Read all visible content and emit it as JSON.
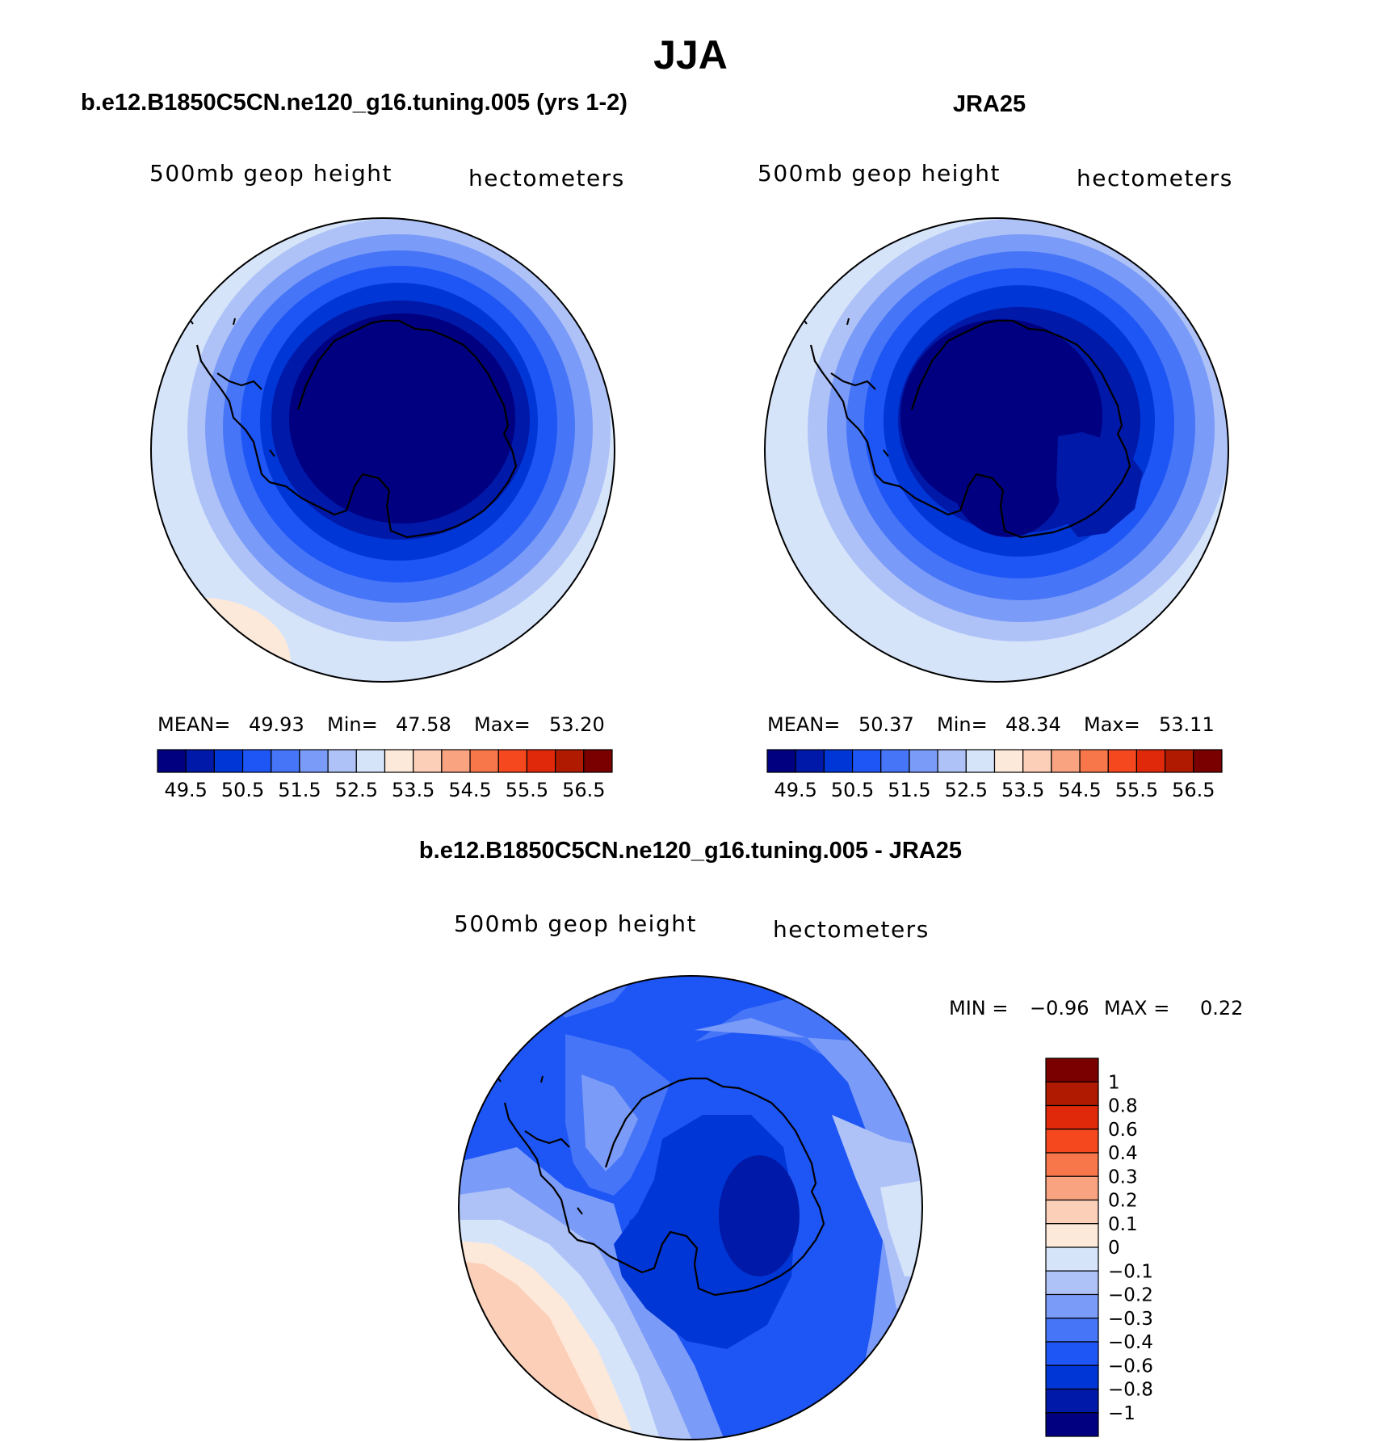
{
  "figure": {
    "title": "JJA",
    "bottom_title": "b.e12.B1850C5CN.ne120_g16.tuning.005 - JRA25"
  },
  "panels": {
    "model": {
      "title": "b.e12.B1850C5CN.ne120_g16.tuning.005 (yrs 1-2)",
      "variable": "500mb geop height",
      "units": "hectometers",
      "stats": {
        "mean_label": "MEAN=",
        "mean": "49.93",
        "min_label": "Min=",
        "min": "47.58",
        "max_label": "Max=",
        "max": "53.20"
      },
      "colorbar_labels": [
        "49.5",
        "50.5",
        "51.5",
        "52.5",
        "53.5",
        "54.5",
        "55.5",
        "56.5"
      ]
    },
    "obs": {
      "title": "JRA25",
      "variable": "500mb geop height",
      "units": "hectometers",
      "stats": {
        "mean_label": "MEAN=",
        "mean": "50.37",
        "min_label": "Min=",
        "min": "48.34",
        "max_label": "Max=",
        "max": "53.11"
      },
      "colorbar_labels": [
        "49.5",
        "50.5",
        "51.5",
        "52.5",
        "53.5",
        "54.5",
        "55.5",
        "56.5"
      ]
    },
    "diff": {
      "variable": "500mb geop height",
      "units": "hectometers",
      "stats": {
        "min_label": "MIN =",
        "min": "−0.96",
        "max_label": "MAX =",
        "max": "0.22"
      },
      "colorbar_labels": [
        "1",
        "0.8",
        "0.6",
        "0.4",
        "0.3",
        "0.2",
        "0.1",
        "0",
        "−0.1",
        "−0.2",
        "−0.3",
        "−0.4",
        "−0.6",
        "−0.8",
        "−1"
      ]
    }
  },
  "chart_data": [
    {
      "type": "heatmap",
      "title": "b.e12.B1850C5CN.ne120_g16.tuning.005 (yrs 1-2)",
      "projection": "south polar stereographic",
      "variable": "500mb geop height",
      "units": "hectometers",
      "stats": {
        "mean": 49.93,
        "min": 47.58,
        "max": 53.2
      },
      "levels": [
        49.5,
        50,
        50.5,
        51,
        51.5,
        52,
        52.5,
        53,
        53.5,
        54,
        54.5,
        55,
        55.5,
        56,
        56.5
      ],
      "colors": [
        "#000080",
        "#0019a8",
        "#0036d6",
        "#1e55f5",
        "#4675f7",
        "#7a9bf8",
        "#aec2f7",
        "#d6e4fa",
        "#fde9da",
        "#fbcfb8",
        "#f9a380",
        "#f7774b",
        "#f5481e",
        "#e0280a",
        "#b01a00",
        "#7a0000"
      ],
      "colorbar_labels": [
        49.5,
        50.5,
        51.5,
        52.5,
        53.5,
        54.5,
        55.5,
        56.5
      ]
    },
    {
      "type": "heatmap",
      "title": "JRA25",
      "projection": "south polar stereographic",
      "variable": "500mb geop height",
      "units": "hectometers",
      "stats": {
        "mean": 50.37,
        "min": 48.34,
        "max": 53.11
      },
      "levels": [
        49.5,
        50,
        50.5,
        51,
        51.5,
        52,
        52.5,
        53,
        53.5,
        54,
        54.5,
        55,
        55.5,
        56,
        56.5
      ],
      "colors": [
        "#000080",
        "#0019a8",
        "#0036d6",
        "#1e55f5",
        "#4675f7",
        "#7a9bf8",
        "#aec2f7",
        "#d6e4fa",
        "#fde9da",
        "#fbcfb8",
        "#f9a380",
        "#f7774b",
        "#f5481e",
        "#e0280a",
        "#b01a00",
        "#7a0000"
      ],
      "colorbar_labels": [
        49.5,
        50.5,
        51.5,
        52.5,
        53.5,
        54.5,
        55.5,
        56.5
      ]
    },
    {
      "type": "heatmap",
      "title": "b.e12.B1850C5CN.ne120_g16.tuning.005 - JRA25",
      "projection": "south polar stereographic",
      "variable": "500mb geop height",
      "units": "hectometers",
      "stats": {
        "min": -0.96,
        "max": 0.22
      },
      "levels": [
        -1,
        -0.8,
        -0.6,
        -0.4,
        -0.3,
        -0.2,
        -0.1,
        0,
        0.1,
        0.2,
        0.3,
        0.4,
        0.6,
        0.8,
        1
      ],
      "colors": [
        "#000080",
        "#0019a8",
        "#0036d6",
        "#1e55f5",
        "#4675f7",
        "#7a9bf8",
        "#aec2f7",
        "#d6e4fa",
        "#fde9da",
        "#fbcfb8",
        "#f9a380",
        "#f7774b",
        "#f5481e",
        "#e0280a",
        "#b01a00",
        "#7a0000"
      ],
      "colorbar_labels": [
        1,
        0.8,
        0.6,
        0.4,
        0.3,
        0.2,
        0.1,
        0,
        -0.1,
        -0.2,
        -0.3,
        -0.4,
        -0.6,
        -0.8,
        -1
      ]
    }
  ]
}
